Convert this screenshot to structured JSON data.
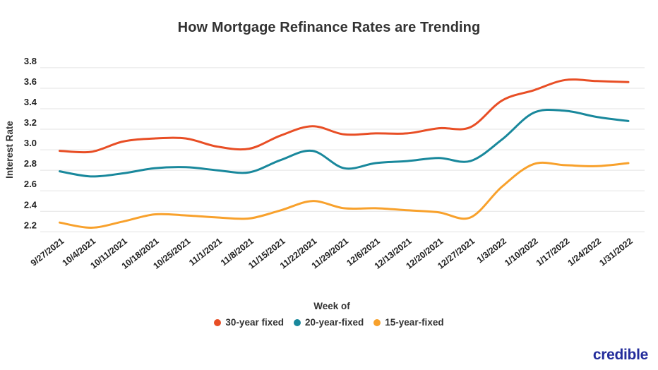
{
  "title": "How Mortgage Refinance Rates are Trending",
  "brand": {
    "logo_text": "credible",
    "logo_color": "#232C9B"
  },
  "chart_data": {
    "type": "line",
    "title": "How Mortgage Refinance Rates are Trending",
    "xlabel": "Week of",
    "ylabel": "Interest Rate",
    "ylim": [
      2.2,
      3.8
    ],
    "yticks": [
      "3.8",
      "3.6",
      "3.4",
      "3.2",
      "3.0",
      "2.8",
      "2.6",
      "2.4",
      "2.2"
    ],
    "grid": true,
    "legend_position": "bottom",
    "grid_color": "#e3e3e3",
    "categories": [
      "9/27/2021",
      "10/4/2021",
      "10/11/2021",
      "10/18/2021",
      "10/25/2021",
      "11/1/2021",
      "11/8/2021",
      "11/15/2021",
      "11/22/2021",
      "11/29/2021",
      "12/6/2021",
      "12/13/2021",
      "12/20/2021",
      "12/27/2021",
      "1/3/2022",
      "1/10/2022",
      "1/17/2022",
      "1/24/2022",
      "1/31/2022"
    ],
    "series": [
      {
        "name": "30-year fixed",
        "color": "#E84E25",
        "values": [
          2.99,
          2.98,
          3.08,
          3.11,
          3.11,
          3.03,
          3.01,
          3.14,
          3.23,
          3.15,
          3.16,
          3.16,
          3.21,
          3.22,
          3.48,
          3.58,
          3.68,
          3.67,
          3.66
        ]
      },
      {
        "name": "20-year-fixed",
        "color": "#19889C",
        "values": [
          2.79,
          2.74,
          2.77,
          2.82,
          2.83,
          2.8,
          2.78,
          2.9,
          2.99,
          2.82,
          2.87,
          2.89,
          2.92,
          2.89,
          3.1,
          3.36,
          3.38,
          3.32,
          3.28
        ]
      },
      {
        "name": "15-year-fixed",
        "color": "#F8A12C",
        "values": [
          2.29,
          2.24,
          2.3,
          2.37,
          2.36,
          2.34,
          2.33,
          2.41,
          2.5,
          2.43,
          2.43,
          2.41,
          2.39,
          2.34,
          2.64,
          2.86,
          2.85,
          2.84,
          2.87
        ]
      }
    ]
  }
}
